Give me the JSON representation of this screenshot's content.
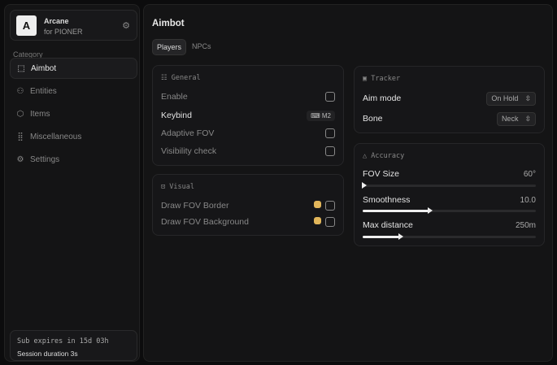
{
  "brand": {
    "logo": "A",
    "name": "Arcane",
    "subtitle": "for PIONER"
  },
  "sidebar": {
    "category_label": "Category",
    "items": [
      {
        "label": "Aimbot",
        "icon": "crosshair-dashed-icon",
        "glyph": "⬚",
        "active": true
      },
      {
        "label": "Entities",
        "icon": "entities-icon",
        "glyph": "⚇"
      },
      {
        "label": "Items",
        "icon": "cube-icon",
        "glyph": "⬡"
      },
      {
        "label": "Miscellaneous",
        "icon": "grid-icon",
        "glyph": "⣿"
      },
      {
        "label": "Settings",
        "icon": "gear-icon",
        "glyph": "⚙"
      }
    ]
  },
  "footer": {
    "sub": "Sub expires in 15d 03h",
    "session": "Session duration 3s"
  },
  "main": {
    "title": "Aimbot",
    "tabs": [
      {
        "label": "Players",
        "active": true
      },
      {
        "label": "NPCs"
      }
    ]
  },
  "general": {
    "header": "General",
    "enable": "Enable",
    "keybind": "Keybind",
    "keybind_value": "M2",
    "adaptive": "Adaptive FOV",
    "visibility": "Visibility check"
  },
  "visual": {
    "header": "Visual",
    "border": "Draw FOV Border",
    "background": "Draw FOV Background",
    "color": "#e2b65a"
  },
  "tracker": {
    "header": "Tracker",
    "aim_mode": "Aim mode",
    "aim_mode_value": "On Hold",
    "bone": "Bone",
    "bone_value": "Neck"
  },
  "accuracy": {
    "header": "Accuracy",
    "fov": {
      "label": "FOV Size",
      "value": "60°",
      "fraction": 0.0
    },
    "smooth": {
      "label": "Smoothness",
      "value": "10.0",
      "fraction": 0.38
    },
    "dist": {
      "label": "Max distance",
      "value": "250m",
      "fraction": 0.21
    }
  }
}
